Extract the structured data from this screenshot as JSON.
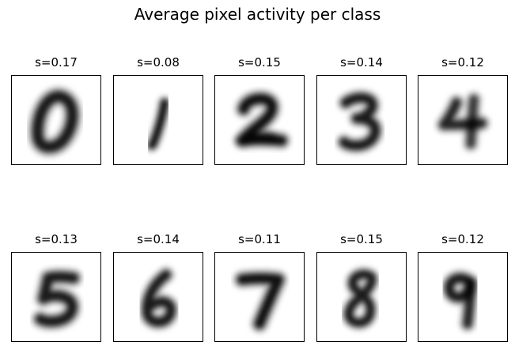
{
  "figure": {
    "title": "Average pixel activity per class"
  },
  "chart_data": {
    "type": "heatmap",
    "title": "Average pixel activity per class",
    "layout": "2 rows x 5 columns of image panels",
    "colormap": "gray_r",
    "axes_ticks": false,
    "panels": [
      {
        "class": "0",
        "title": "s=0.17",
        "s": 0.17
      },
      {
        "class": "1",
        "title": "s=0.08",
        "s": 0.08
      },
      {
        "class": "2",
        "title": "s=0.15",
        "s": 0.15
      },
      {
        "class": "3",
        "title": "s=0.14",
        "s": 0.14
      },
      {
        "class": "4",
        "title": "s=0.12",
        "s": 0.12
      },
      {
        "class": "5",
        "title": "s=0.13",
        "s": 0.13
      },
      {
        "class": "6",
        "title": "s=0.14",
        "s": 0.14
      },
      {
        "class": "7",
        "title": "s=0.11",
        "s": 0.11
      },
      {
        "class": "8",
        "title": "s=0.15",
        "s": 0.15
      },
      {
        "class": "9",
        "title": "s=0.12",
        "s": 0.12
      }
    ]
  }
}
